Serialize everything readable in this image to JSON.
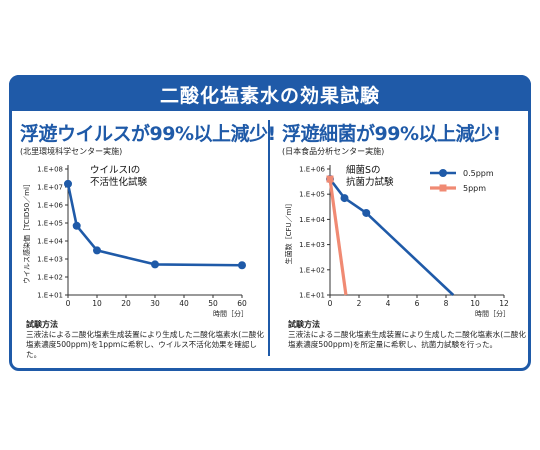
{
  "banner_title": "二酸化塩素水の効果試験",
  "colors": {
    "brand": "#1f5aa8",
    "series_blue": "#1f5aa8",
    "series_salmon": "#f08a73"
  },
  "left": {
    "headline": "浮遊ウイルスが99%以上減少!",
    "sub": "(北里環境科学センター実施)",
    "method_title": "試験方法",
    "method_text": "三液法による二酸化塩素生成装置により生成した二酸化塩素水(二酸化塩素濃度500ppm)を1ppmに希釈し、ウイルス不活化効果を確認した。"
  },
  "right": {
    "headline": "浮遊細菌が99%以上減少!",
    "sub": "(日本食品分析センター実施)",
    "method_title": "試験方法",
    "method_text": "三液法による二酸化塩素生成装置により生成した二酸化塩素水(二酸化塩素濃度500ppm)を所定量に希釈し、抗菌力試験を行った。"
  },
  "chart_data": [
    {
      "type": "line",
      "title": "ウイルスIの不活性化試験",
      "title_lines": [
        "ウイルスIの",
        "不活性化試験"
      ],
      "xlabel": "時間［分］",
      "ylabel": "ウイルス感染価［TCID50／ml］",
      "y_scale": "log",
      "ylim": [
        10,
        100000000
      ],
      "xlim": [
        0,
        60
      ],
      "x_ticks": [
        "0",
        "10",
        "20",
        "30",
        "40",
        "50",
        "60"
      ],
      "y_ticks": [
        "1.E+01",
        "1.E+02",
        "1.E+03",
        "1.E+04",
        "1.E+05",
        "1.E+06",
        "1.E+07",
        "1.E+08"
      ],
      "grid": false,
      "series": [
        {
          "color": "#1f5aa8",
          "x": [
            0,
            3,
            10,
            30,
            60
          ],
          "y": [
            15000000,
            70000,
            3000,
            500,
            450
          ]
        }
      ]
    },
    {
      "type": "line",
      "title": "細菌Sの抗菌力試験",
      "title_lines": [
        "細菌Sの",
        "抗菌力試験"
      ],
      "xlabel": "時間［分］",
      "ylabel": "生菌数［CFU／ml］",
      "y_scale": "log",
      "ylim": [
        10,
        1000000
      ],
      "xlim": [
        0,
        12
      ],
      "x_ticks": [
        "0",
        "2",
        "4",
        "6",
        "8",
        "10",
        "12"
      ],
      "y_ticks": [
        "1.E+01",
        "1.E+02",
        "1.E+03",
        "1.E+04",
        "1.E+05",
        "1.E+06"
      ],
      "grid": false,
      "legend": "top-right",
      "series": [
        {
          "name": "0.5ppm",
          "color": "#1f5aa8",
          "x": [
            0,
            1,
            2.5,
            8.5
          ],
          "y": [
            400000,
            70000,
            18000,
            10
          ]
        },
        {
          "name": "5ppm",
          "color": "#f08a73",
          "x": [
            0,
            1.1
          ],
          "y": [
            400000,
            10
          ]
        }
      ]
    }
  ]
}
